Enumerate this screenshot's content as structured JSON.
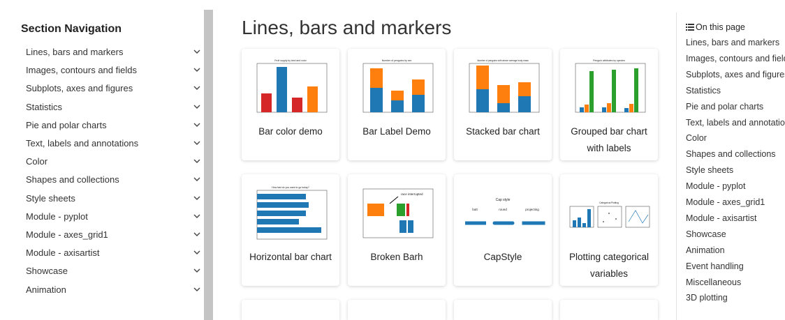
{
  "nav": {
    "title": "Section Navigation",
    "items": [
      "Lines, bars and markers",
      "Images, contours and fields",
      "Subplots, axes and figures",
      "Statistics",
      "Pie and polar charts",
      "Text, labels and annotations",
      "Color",
      "Shapes and collections",
      "Style sheets",
      "Module - pyplot",
      "Module - axes_grid1",
      "Module - axisartist",
      "Showcase",
      "Animation"
    ]
  },
  "main": {
    "title": "Lines, bars and markers",
    "cards": [
      {
        "title": "Bar color demo",
        "thumb_title": "Fruit supply by kind and color"
      },
      {
        "title": "Bar Label Demo",
        "thumb_title": "Number of penguins by sex"
      },
      {
        "title": "Stacked bar chart",
        "thumb_title": "Number of penguins with above average body mass"
      },
      {
        "title": "Grouped bar chart with labels",
        "thumb_title": "Penguin attributes by species"
      },
      {
        "title": "Horizontal bar chart",
        "thumb_title": "How fast do you want to go today?"
      },
      {
        "title": "Broken Barh",
        "thumb_title": "race interrupted"
      },
      {
        "title": "CapStyle",
        "thumb_title": "Cap style",
        "thumb_labels": [
          "butt",
          "round",
          "projecting"
        ]
      },
      {
        "title": "Plotting categorical variables",
        "thumb_title": "Categorical Plotting"
      }
    ]
  },
  "toc": {
    "title": "On this page",
    "items": [
      "Lines, bars and markers",
      "Images, contours and fields",
      "Subplots, axes and figures",
      "Statistics",
      "Pie and polar charts",
      "Text, labels and annotations",
      "Color",
      "Shapes and collections",
      "Style sheets",
      "Module - pyplot",
      "Module - axes_grid1",
      "Module - axisartist",
      "Showcase",
      "Animation",
      "Event handling",
      "Miscellaneous",
      "3D plotting"
    ]
  }
}
